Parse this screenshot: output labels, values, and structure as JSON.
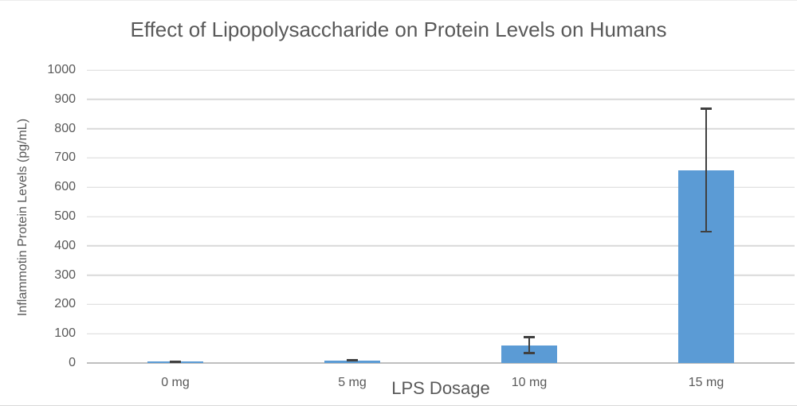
{
  "chart_data": {
    "type": "bar",
    "title": "Effect of Lipopolysaccharide on Protein Levels on Humans",
    "xlabel": "LPS Dosage",
    "ylabel": "Inflammotin Protein Levels (pg/mL)",
    "categories": [
      "0 mg",
      "5 mg",
      "10 mg",
      "15 mg"
    ],
    "values": [
      5,
      9,
      61,
      658
    ],
    "error_bars": [
      3,
      3,
      31,
      213
    ],
    "ylim": [
      0,
      1000
    ],
    "ytick_step": 100,
    "ytick_labels": [
      "0",
      "100",
      "200",
      "300",
      "400",
      "500",
      "600",
      "700",
      "800",
      "900",
      "1000"
    ],
    "grid": true,
    "legend": false,
    "colors": {
      "bar_fill": "#5B9BD5",
      "error_bar": "#404040",
      "gridline": "#D9D9D9",
      "axis_line": "#BFBFBF",
      "text": "#595959"
    }
  }
}
